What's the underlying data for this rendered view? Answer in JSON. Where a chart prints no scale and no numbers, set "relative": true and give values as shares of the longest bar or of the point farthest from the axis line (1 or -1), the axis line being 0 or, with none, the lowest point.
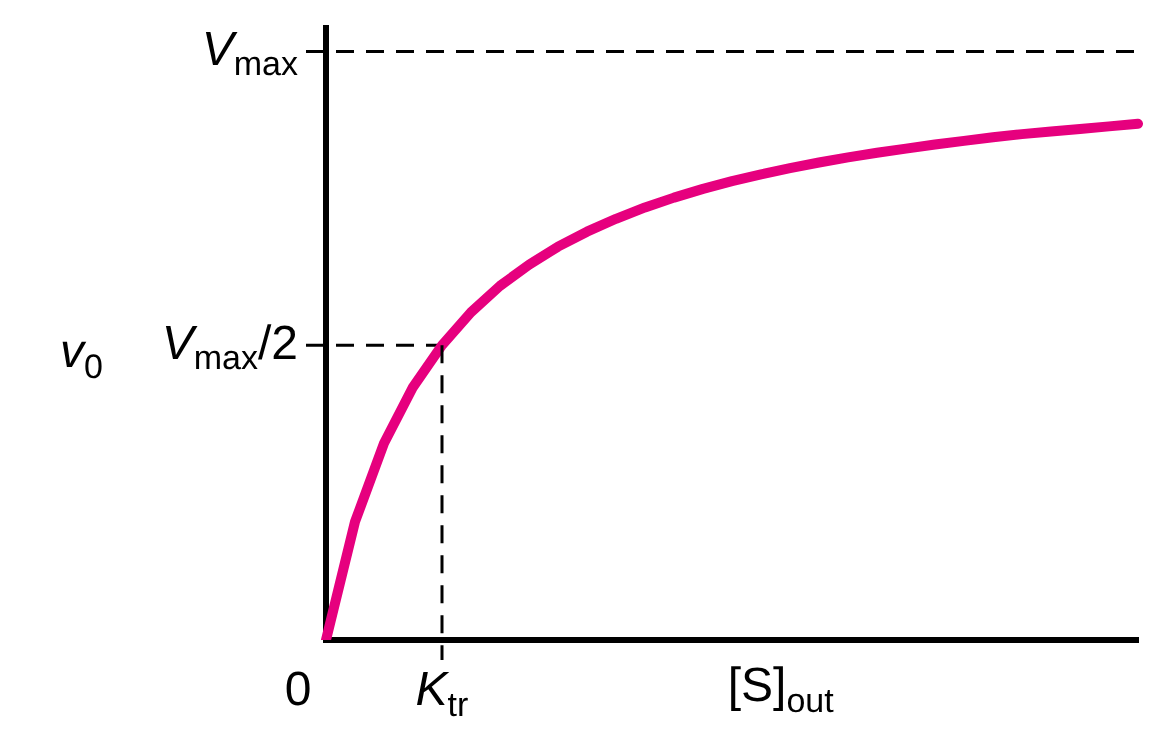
{
  "chart_data": {
    "type": "line",
    "relative": true,
    "xlabel": "[S]$_{out}$",
    "ylabel": "v$_{0}$",
    "categories": [
      null,
      null,
      null,
      null,
      null,
      null,
      null,
      null,
      null,
      null,
      null,
      null,
      null,
      null,
      null,
      null,
      null,
      null,
      null,
      null,
      null,
      null,
      null,
      null,
      null,
      null,
      null,
      null,
      null
    ],
    "series": [
      {
        "color": "#e6007e",
        "values": [
          0,
          0.229,
          0.381,
          0.49,
          0.571,
          0.635,
          0.686,
          0.727,
          0.762,
          0.791,
          0.816,
          0.838,
          0.857,
          0.874,
          0.889,
          0.902,
          0.914,
          0.925,
          0.935,
          0.944,
          0.952,
          0.96,
          0.967,
          0.974,
          0.98,
          0.985,
          0.99,
          0.995,
          1
        ]
      }
    ],
    "annotations": [
      "0",
      {
        "text": "K$_{tr}$",
        "y": 0.571
      }
    ],
    "ref_lines": [
      {
        "axis": "y",
        "value": 1.14,
        "label": "V$_{max}$",
        "color": "#000000",
        "line_style": "dashed"
      },
      {
        "axis": "y",
        "value": 0.571,
        "label": "V$_{max}$/2",
        "color": "#000000",
        "line_style": "dashed"
      }
    ]
  }
}
